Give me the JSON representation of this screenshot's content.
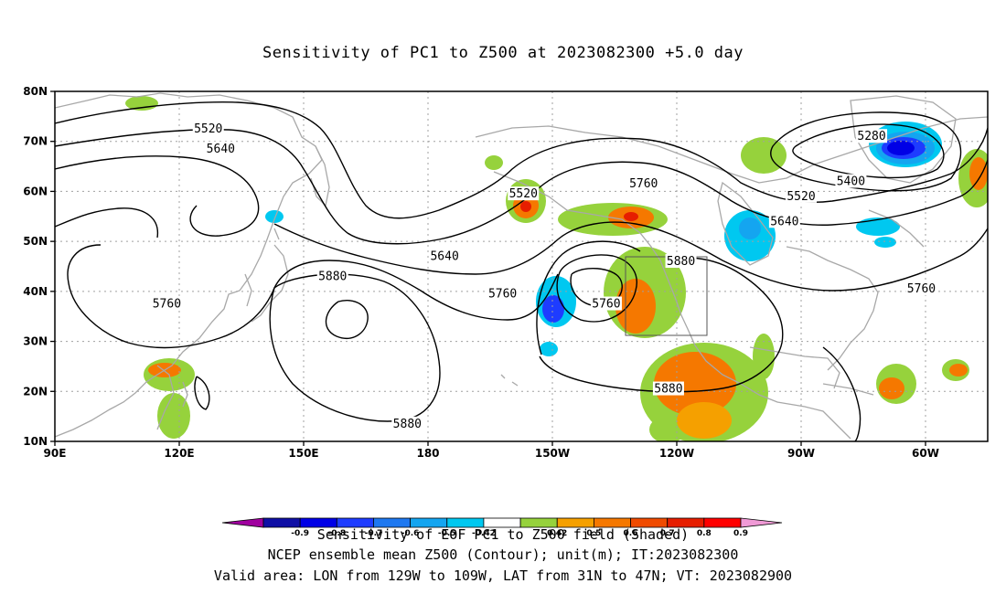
{
  "title": "Sensitivity of PC1 to Z500 at 2023082300 +5.0 day",
  "captions": {
    "shaded": "Sensitivity of EOF PC1 to Z500 field (Shaded)",
    "contour": "NCEP ensemble mean Z500 (Contour); unit(m); IT:2023082300",
    "valid": "Valid area: LON from 129W to 109W, LAT from 31N to 47N; VT: 2023082900"
  },
  "axes": {
    "lon_labels": [
      "90E",
      "120E",
      "150E",
      "180",
      "150W",
      "120W",
      "90W",
      "60W"
    ],
    "lat_labels": [
      "10N",
      "20N",
      "30N",
      "40N",
      "50N",
      "60N",
      "70N",
      "80N"
    ],
    "grid": "dotted"
  },
  "contour_labels": [
    {
      "text": "5520",
      "lon": 127,
      "lat": 72.5
    },
    {
      "text": "5640",
      "lon": 130,
      "lat": 68.5
    },
    {
      "text": "5520",
      "lon": 203,
      "lat": 59.5
    },
    {
      "text": "5760",
      "lon": 232,
      "lat": 61.5
    },
    {
      "text": "5280",
      "lon": 287,
      "lat": 71
    },
    {
      "text": "5400",
      "lon": 282,
      "lat": 62
    },
    {
      "text": "5520",
      "lon": 270,
      "lat": 59
    },
    {
      "text": "5640",
      "lon": 266,
      "lat": 54
    },
    {
      "text": "5640",
      "lon": 184,
      "lat": 47
    },
    {
      "text": "5880",
      "lon": 157,
      "lat": 43
    },
    {
      "text": "5880",
      "lon": 241,
      "lat": 46
    },
    {
      "text": "5760",
      "lon": 117,
      "lat": 37.5
    },
    {
      "text": "5760",
      "lon": 198,
      "lat": 39.5
    },
    {
      "text": "5760",
      "lon": 223,
      "lat": 37.5
    },
    {
      "text": "5760",
      "lon": 299,
      "lat": 40.5
    },
    {
      "text": "5880",
      "lon": 238,
      "lat": 20.5
    },
    {
      "text": "5880",
      "lon": 175,
      "lat": 13.5
    }
  ],
  "colorbar": {
    "labels": [
      "-0.9",
      "-0.8",
      "-0.7",
      "-0.6",
      "-0.5",
      "-0.42",
      "0.42",
      "0.5",
      "0.6",
      "0.7",
      "0.8",
      "0.9"
    ],
    "colors": [
      "#a0009f",
      "#0f0fa5",
      "#0000e6",
      "#1e3cff",
      "#1e78f0",
      "#14a5f0",
      "#00c8f0",
      "#ffffff",
      "#96d23c",
      "#f5a000",
      "#f57800",
      "#f04b00",
      "#e61e00",
      "#ff0000",
      "#f09ad6"
    ]
  },
  "valid_box": {
    "lon_min": 231,
    "lon_max": 251,
    "lat_min": 31,
    "lat_max": 47
  }
}
